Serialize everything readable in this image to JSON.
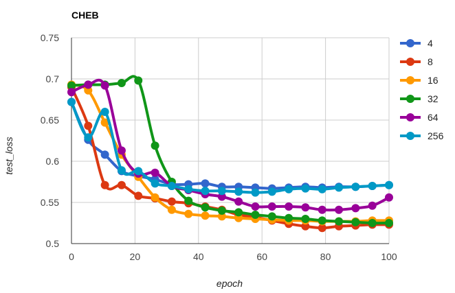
{
  "chart_data": {
    "type": "line",
    "title": "CHEB",
    "xlabel": "epoch",
    "ylabel": "test_loss",
    "xlim": [
      0,
      100
    ],
    "ylim": [
      0.5,
      0.75
    ],
    "x_ticks": [
      "0",
      "20",
      "40",
      "60",
      "80",
      "100"
    ],
    "y_ticks": [
      "0.5",
      "0.55",
      "0.6",
      "0.65",
      "0.7",
      "0.75"
    ],
    "grid": true,
    "legend_position": "right",
    "x": [
      0,
      5.26,
      10.53,
      15.79,
      21.05,
      26.32,
      31.58,
      36.84,
      42.11,
      47.37,
      52.63,
      57.89,
      63.16,
      68.42,
      73.68,
      78.95,
      84.21,
      89.47,
      94.74,
      100
    ],
    "series": [
      {
        "name": "4",
        "color": "#3366cc",
        "values": [
          0.672,
          0.626,
          0.608,
          0.588,
          0.582,
          0.578,
          0.572,
          0.572,
          0.573,
          0.569,
          0.569,
          0.568,
          0.567,
          0.568,
          0.569,
          0.568,
          0.569,
          0.569,
          0.57,
          0.571
        ]
      },
      {
        "name": "8",
        "color": "#dc3912",
        "values": [
          0.69,
          0.643,
          0.571,
          0.571,
          0.558,
          0.555,
          0.551,
          0.549,
          0.545,
          0.541,
          0.535,
          0.532,
          0.528,
          0.524,
          0.521,
          0.519,
          0.521,
          0.522,
          0.523,
          0.523
        ]
      },
      {
        "name": "16",
        "color": "#ff9900",
        "values": [
          0.693,
          0.686,
          0.647,
          0.608,
          0.581,
          0.556,
          0.541,
          0.536,
          0.534,
          0.533,
          0.531,
          0.53,
          0.529,
          0.528,
          0.528,
          0.527,
          0.527,
          0.527,
          0.528,
          0.528
        ]
      },
      {
        "name": "32",
        "color": "#109618",
        "values": [
          0.692,
          0.693,
          0.693,
          0.695,
          0.698,
          0.619,
          0.575,
          0.552,
          0.544,
          0.54,
          0.538,
          0.535,
          0.533,
          0.531,
          0.53,
          0.528,
          0.527,
          0.526,
          0.525,
          0.525
        ]
      },
      {
        "name": "64",
        "color": "#990099",
        "values": [
          0.684,
          0.693,
          0.692,
          0.613,
          0.585,
          0.586,
          0.57,
          0.565,
          0.56,
          0.557,
          0.551,
          0.545,
          0.545,
          0.545,
          0.544,
          0.541,
          0.541,
          0.543,
          0.546,
          0.556
        ]
      },
      {
        "name": "256",
        "color": "#0099c6",
        "values": [
          0.672,
          0.629,
          0.66,
          0.589,
          0.588,
          0.573,
          0.57,
          0.566,
          0.564,
          0.564,
          0.563,
          0.562,
          0.563,
          0.566,
          0.567,
          0.566,
          0.568,
          0.569,
          0.57,
          0.571
        ]
      }
    ]
  }
}
